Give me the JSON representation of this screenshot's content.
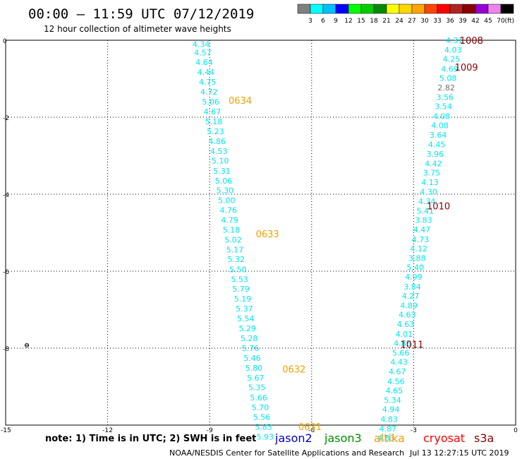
{
  "chart_data": {
    "type": "scatter",
    "title": "00:00 – 11:59 UTC 07/12/2019",
    "subtitle": "12 hour collection of altimeter wave heights",
    "x_ticks": [
      -15,
      -12,
      -9,
      -6,
      -3,
      0
    ],
    "y_ticks": [
      0,
      -2,
      -4,
      -6,
      -8,
      -10
    ],
    "xlim": [
      -15,
      0
    ],
    "ylim": [
      -10,
      0
    ],
    "grid": "dotted",
    "colorbar": {
      "labels": [
        "3",
        "6",
        "9",
        "12",
        "15",
        "18",
        "21",
        "24",
        "27",
        "30",
        "33",
        "36",
        "39",
        "42",
        "45",
        "70"
      ],
      "unit": "(ft)",
      "colors": [
        "#808080",
        "#00ffff",
        "#00bfff",
        "#0000ff",
        "#00ff00",
        "#00cd00",
        "#008b00",
        "#ffff00",
        "#ffd700",
        "#ffa500",
        "#ff4500",
        "#ff0000",
        "#b22222",
        "#8b0000",
        "#9400d3",
        "#ee82ee",
        "#000000"
      ]
    },
    "series": [
      {
        "color": "#00e5ee",
        "points": [
          {
            "x": -9.25,
            "y": -0.1,
            "label": "4.34"
          },
          {
            "x": -9.2,
            "y": -0.32,
            "label": "4.57"
          },
          {
            "x": -9.16,
            "y": -0.57,
            "label": "4.64"
          },
          {
            "x": -9.11,
            "y": -0.83,
            "label": "4.44"
          },
          {
            "x": -9.06,
            "y": -1.08,
            "label": "4.75"
          },
          {
            "x": -9.02,
            "y": -1.34,
            "label": "4.72"
          },
          {
            "x": -8.97,
            "y": -1.6,
            "label": "5.06"
          },
          {
            "x": -8.92,
            "y": -1.85,
            "label": "4.67"
          },
          {
            "x": -8.88,
            "y": -2.11,
            "label": "5.18"
          },
          {
            "x": -8.83,
            "y": -2.37,
            "label": "5.23"
          },
          {
            "x": -8.78,
            "y": -2.62,
            "label": "4.86"
          },
          {
            "x": -8.73,
            "y": -2.88,
            "label": "4.53"
          },
          {
            "x": -8.69,
            "y": -3.13,
            "label": "5.10"
          },
          {
            "x": -8.64,
            "y": -3.39,
            "label": "5.31"
          },
          {
            "x": -8.59,
            "y": -3.65,
            "label": "5.06"
          },
          {
            "x": -8.55,
            "y": -3.9,
            "label": "5.30"
          },
          {
            "x": -8.5,
            "y": -4.16,
            "label": "5.00"
          },
          {
            "x": -8.45,
            "y": -4.41,
            "label": "4.76"
          },
          {
            "x": -8.41,
            "y": -4.67,
            "label": "4.79"
          },
          {
            "x": -8.36,
            "y": -4.93,
            "label": "5.18"
          },
          {
            "x": -8.31,
            "y": -5.18,
            "label": "5.02"
          },
          {
            "x": -8.26,
            "y": -5.44,
            "label": "5.17"
          },
          {
            "x": -8.22,
            "y": -5.69,
            "label": "5.32"
          },
          {
            "x": -8.17,
            "y": -5.95,
            "label": "5.50"
          },
          {
            "x": -8.12,
            "y": -6.21,
            "label": "5.53"
          },
          {
            "x": -8.08,
            "y": -6.46,
            "label": "5.79"
          },
          {
            "x": -8.03,
            "y": -6.72,
            "label": "5.19"
          },
          {
            "x": -7.98,
            "y": -6.97,
            "label": "5.37"
          },
          {
            "x": -7.94,
            "y": -7.23,
            "label": "5.54"
          },
          {
            "x": -7.89,
            "y": -7.49,
            "label": "5.29"
          },
          {
            "x": -7.84,
            "y": -7.74,
            "label": "5.28"
          },
          {
            "x": -7.8,
            "y": -8.0,
            "label": "5.76"
          },
          {
            "x": -7.75,
            "y": -8.26,
            "label": "5.46"
          },
          {
            "x": -7.7,
            "y": -8.51,
            "label": "5.80"
          },
          {
            "x": -7.65,
            "y": -8.77,
            "label": "5.67"
          },
          {
            "x": -7.61,
            "y": -9.02,
            "label": "5.35"
          },
          {
            "x": -7.56,
            "y": -9.28,
            "label": "5.66"
          },
          {
            "x": -7.51,
            "y": -9.54,
            "label": "5.70"
          },
          {
            "x": -7.47,
            "y": -9.79,
            "label": "5.56"
          },
          {
            "x": -7.42,
            "y": -10.05,
            "label": "5.83"
          },
          {
            "x": -7.37,
            "y": -10.3,
            "label": "5.93"
          }
        ]
      },
      {
        "color": "#00e5ee",
        "points": [
          {
            "x": -1.8,
            "y": 0.0,
            "label": "4.31"
          },
          {
            "x": -1.84,
            "y": -0.25,
            "label": "4.03"
          },
          {
            "x": -1.89,
            "y": -0.49,
            "label": "4.25"
          },
          {
            "x": -1.94,
            "y": -0.74,
            "label": "4.69"
          },
          {
            "x": -1.99,
            "y": -0.98,
            "label": "5.08"
          },
          {
            "x": -2.04,
            "y": -1.23,
            "label": "2.82"
          },
          {
            "x": -2.08,
            "y": -1.48,
            "label": "3.56"
          },
          {
            "x": -2.13,
            "y": -1.72,
            "label": "3.54"
          },
          {
            "x": -2.18,
            "y": -1.97,
            "label": "4.08"
          },
          {
            "x": -2.23,
            "y": -2.21,
            "label": "4.08"
          },
          {
            "x": -2.28,
            "y": -2.46,
            "label": "3.64"
          },
          {
            "x": -2.32,
            "y": -2.71,
            "label": "4.45"
          },
          {
            "x": -2.37,
            "y": -2.95,
            "label": "3.96"
          },
          {
            "x": -2.42,
            "y": -3.2,
            "label": "4.42"
          },
          {
            "x": -2.47,
            "y": -3.44,
            "label": "3.75"
          },
          {
            "x": -2.52,
            "y": -3.69,
            "label": "4.13"
          },
          {
            "x": -2.56,
            "y": -3.94,
            "label": "4.30"
          },
          {
            "x": -2.61,
            "y": -4.18,
            "label": "4.34"
          },
          {
            "x": -2.66,
            "y": -4.43,
            "label": "5.41"
          },
          {
            "x": -2.71,
            "y": -4.67,
            "label": "3.83"
          },
          {
            "x": -2.76,
            "y": -4.92,
            "label": "4.47"
          },
          {
            "x": -2.8,
            "y": -5.17,
            "label": "4.73"
          },
          {
            "x": -2.85,
            "y": -5.41,
            "label": "4.12"
          },
          {
            "x": -2.9,
            "y": -5.66,
            "label": "3.88"
          },
          {
            "x": -2.95,
            "y": -5.9,
            "label": "5.40"
          },
          {
            "x": -3.0,
            "y": -6.15,
            "label": "4.99"
          },
          {
            "x": -3.04,
            "y": -6.4,
            "label": "3.84"
          },
          {
            "x": -3.09,
            "y": -6.64,
            "label": "4.27"
          },
          {
            "x": -3.14,
            "y": -6.89,
            "label": "4.89"
          },
          {
            "x": -3.19,
            "y": -7.13,
            "label": "4.63"
          },
          {
            "x": -3.24,
            "y": -7.38,
            "label": "4.63"
          },
          {
            "x": -3.28,
            "y": -7.63,
            "label": "4.01"
          },
          {
            "x": -3.33,
            "y": -7.87,
            "label": "4.88"
          },
          {
            "x": -3.38,
            "y": -8.12,
            "label": "5.66"
          },
          {
            "x": -3.43,
            "y": -8.36,
            "label": "4.43"
          },
          {
            "x": -3.48,
            "y": -8.61,
            "label": "4.67"
          },
          {
            "x": -3.52,
            "y": -8.86,
            "label": "4.56"
          },
          {
            "x": -3.57,
            "y": -9.1,
            "label": "4.65"
          },
          {
            "x": -3.62,
            "y": -9.35,
            "label": "5.34"
          },
          {
            "x": -3.67,
            "y": -9.59,
            "label": "4.94"
          },
          {
            "x": -3.72,
            "y": -9.84,
            "label": "4.83"
          },
          {
            "x": -3.76,
            "y": -10.09,
            "label": "4.87"
          },
          {
            "x": -3.81,
            "y": -10.33,
            "label": "4.83"
          }
        ]
      }
    ],
    "pass_labels": [
      {
        "text": "0634",
        "x": -8.1,
        "y": -1.56,
        "color": "#f0a000"
      },
      {
        "text": "0633",
        "x": -7.3,
        "y": -5.03,
        "color": "#f0a000"
      },
      {
        "text": "0632",
        "x": -6.52,
        "y": -8.54,
        "color": "#f0a000"
      },
      {
        "text": "0631",
        "x": -6.05,
        "y": -10.04,
        "color": "#f0a000"
      },
      {
        "text": "1008",
        "x": -1.3,
        "y": 0.0,
        "color": "#8b0000"
      },
      {
        "text": "1009",
        "x": -1.45,
        "y": -0.7,
        "color": "#8b0000"
      },
      {
        "text": "1010",
        "x": -2.27,
        "y": -4.3,
        "color": "#8b0000"
      },
      {
        "text": "1011",
        "x": -3.05,
        "y": -7.9,
        "color": "#8b0000"
      }
    ],
    "satellites": [
      {
        "name": "jason2",
        "color": "#0000cd"
      },
      {
        "name": "jason3",
        "color": "#008b00"
      },
      {
        "name": "altika",
        "color": "#ff9900"
      },
      {
        "name": "cryosat",
        "color": "#ff0000"
      },
      {
        "name": "s3a",
        "color": "#8b0000"
      }
    ]
  },
  "footer": {
    "note": "note:  1) Time is in UTC;  2) SWH is in feet",
    "credit": "NOAA/NESDIS Center for Satellite Applications and Research",
    "timestamp": "Jul 13 12:27:15 UTC 2019"
  }
}
